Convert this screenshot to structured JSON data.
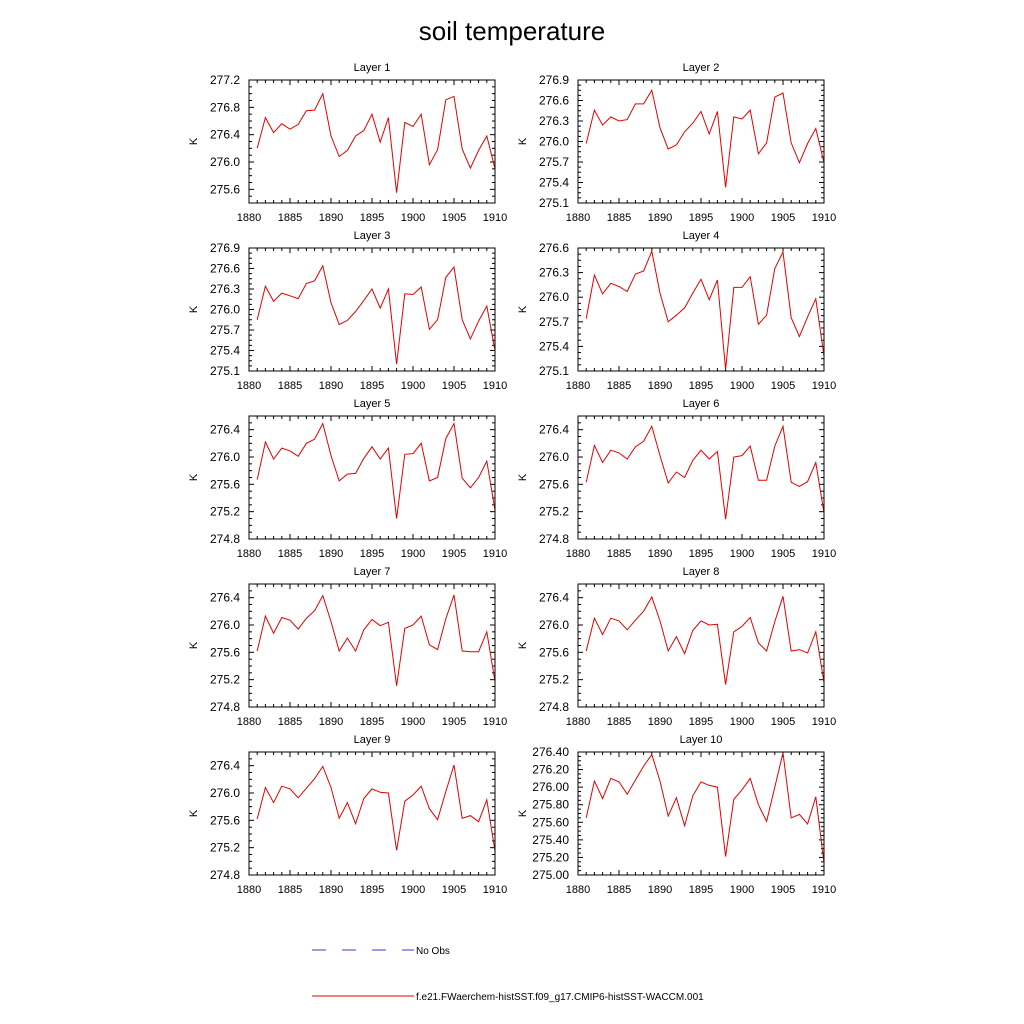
{
  "title": "soil temperature",
  "legend": {
    "no_obs_label": "No Obs",
    "no_obs_color": "#3a3ad0",
    "model_label": "f.e21.FWaerchem-histSST.f09_g17.CMIP6-histSST-WACCM.001",
    "model_color": "#e60000"
  },
  "chart_data": [
    {
      "type": "line",
      "title": "Layer 1",
      "xlabel": "",
      "ylabel": "K",
      "xlim": [
        1880,
        1910
      ],
      "ylim": [
        275.4,
        277.2
      ],
      "x_ticks": [
        1880,
        1885,
        1890,
        1895,
        1900,
        1905,
        1910
      ],
      "y_ticks": [
        "275.6",
        "276.0",
        "276.4",
        "276.8",
        "277.2"
      ],
      "x": [
        1881,
        1882,
        1883,
        1884,
        1885,
        1886,
        1887,
        1888,
        1889,
        1890,
        1891,
        1892,
        1893,
        1894,
        1895,
        1896,
        1897,
        1898,
        1899,
        1900,
        1901,
        1902,
        1903,
        1904,
        1905,
        1906,
        1907,
        1908,
        1909,
        1910
      ],
      "series": [
        {
          "values": [
            276.2,
            276.65,
            276.43,
            276.56,
            276.48,
            276.55,
            276.75,
            276.76,
            277.0,
            276.38,
            276.08,
            276.17,
            276.38,
            276.46,
            276.7,
            276.29,
            276.65,
            275.55,
            276.58,
            276.52,
            276.7,
            275.96,
            276.18,
            276.91,
            276.96,
            276.19,
            275.91,
            276.17,
            276.38,
            275.9
          ]
        }
      ]
    },
    {
      "type": "line",
      "title": "Layer 2",
      "xlabel": "",
      "ylabel": "K",
      "xlim": [
        1880,
        1910
      ],
      "ylim": [
        275.1,
        276.9
      ],
      "x_ticks": [
        1880,
        1885,
        1890,
        1895,
        1900,
        1905,
        1910
      ],
      "y_ticks": [
        "275.1",
        "275.4",
        "275.7",
        "276.0",
        "276.3",
        "276.6",
        "276.9"
      ],
      "x": [
        1881,
        1882,
        1883,
        1884,
        1885,
        1886,
        1887,
        1888,
        1889,
        1890,
        1891,
        1892,
        1893,
        1894,
        1895,
        1896,
        1897,
        1898,
        1899,
        1900,
        1901,
        1902,
        1903,
        1904,
        1905,
        1906,
        1907,
        1908,
        1909,
        1910
      ],
      "series": [
        {
          "values": [
            275.97,
            276.46,
            276.24,
            276.36,
            276.3,
            276.32,
            276.55,
            276.55,
            276.75,
            276.2,
            275.89,
            275.95,
            276.14,
            276.27,
            276.44,
            276.11,
            276.44,
            275.33,
            276.36,
            276.33,
            276.46,
            275.82,
            275.98,
            276.65,
            276.71,
            275.98,
            275.69,
            275.97,
            276.19,
            275.69
          ]
        }
      ]
    },
    {
      "type": "line",
      "title": "Layer 3",
      "xlabel": "",
      "ylabel": "K",
      "xlim": [
        1880,
        1910
      ],
      "ylim": [
        275.1,
        276.9
      ],
      "x_ticks": [
        1880,
        1885,
        1890,
        1895,
        1900,
        1905,
        1910
      ],
      "y_ticks": [
        "275.1",
        "275.4",
        "275.7",
        "276.0",
        "276.3",
        "276.6",
        "276.9"
      ],
      "x": [
        1881,
        1882,
        1883,
        1884,
        1885,
        1886,
        1887,
        1888,
        1889,
        1890,
        1891,
        1892,
        1893,
        1894,
        1895,
        1896,
        1897,
        1898,
        1899,
        1900,
        1901,
        1902,
        1903,
        1904,
        1905,
        1906,
        1907,
        1908,
        1909,
        1910
      ],
      "series": [
        {
          "values": [
            275.85,
            276.34,
            276.12,
            276.24,
            276.2,
            276.16,
            276.38,
            276.42,
            276.64,
            276.1,
            275.78,
            275.84,
            275.97,
            276.13,
            276.3,
            276.02,
            276.3,
            275.2,
            276.23,
            276.22,
            276.33,
            275.71,
            275.85,
            276.47,
            276.62,
            275.85,
            275.57,
            275.83,
            276.05,
            275.4
          ]
        }
      ]
    },
    {
      "type": "line",
      "title": "Layer 4",
      "xlabel": "",
      "ylabel": "K",
      "xlim": [
        1880,
        1910
      ],
      "ylim": [
        275.1,
        276.6
      ],
      "x_ticks": [
        1880,
        1885,
        1890,
        1895,
        1900,
        1905,
        1910
      ],
      "y_ticks": [
        "275.1",
        "275.4",
        "275.7",
        "276.0",
        "276.3",
        "276.6"
      ],
      "x": [
        1881,
        1882,
        1883,
        1884,
        1885,
        1886,
        1887,
        1888,
        1889,
        1890,
        1891,
        1892,
        1893,
        1894,
        1895,
        1896,
        1897,
        1898,
        1899,
        1900,
        1901,
        1902,
        1903,
        1904,
        1905,
        1906,
        1907,
        1908,
        1909,
        1910
      ],
      "series": [
        {
          "values": [
            275.74,
            276.27,
            276.04,
            276.17,
            276.13,
            276.07,
            276.28,
            276.32,
            276.56,
            276.05,
            275.7,
            275.78,
            275.87,
            276.05,
            276.22,
            275.97,
            276.21,
            275.12,
            276.12,
            276.12,
            276.25,
            275.67,
            275.78,
            276.35,
            276.55,
            275.75,
            275.52,
            275.76,
            275.98,
            275.28
          ]
        }
      ]
    },
    {
      "type": "line",
      "title": "Layer 5",
      "xlabel": "",
      "ylabel": "K",
      "xlim": [
        1880,
        1910
      ],
      "ylim": [
        274.8,
        276.6
      ],
      "x_ticks": [
        1880,
        1885,
        1890,
        1895,
        1900,
        1905,
        1910
      ],
      "y_ticks": [
        "274.8",
        "275.2",
        "275.6",
        "276.0",
        "276.4"
      ],
      "x": [
        1881,
        1882,
        1883,
        1884,
        1885,
        1886,
        1887,
        1888,
        1889,
        1890,
        1891,
        1892,
        1893,
        1894,
        1895,
        1896,
        1897,
        1898,
        1899,
        1900,
        1901,
        1902,
        1903,
        1904,
        1905,
        1906,
        1907,
        1908,
        1909,
        1910
      ],
      "series": [
        {
          "values": [
            275.67,
            276.22,
            275.97,
            276.13,
            276.09,
            276.01,
            276.2,
            276.26,
            276.49,
            276.02,
            275.65,
            275.75,
            275.76,
            275.98,
            276.15,
            275.97,
            276.13,
            275.1,
            276.04,
            276.05,
            276.2,
            275.65,
            275.7,
            276.27,
            276.49,
            275.69,
            275.55,
            275.7,
            275.94,
            275.22
          ]
        }
      ]
    },
    {
      "type": "line",
      "title": "Layer 6",
      "xlabel": "",
      "ylabel": "K",
      "xlim": [
        1880,
        1910
      ],
      "ylim": [
        274.8,
        276.6
      ],
      "x_ticks": [
        1880,
        1885,
        1890,
        1895,
        1900,
        1905,
        1910
      ],
      "y_ticks": [
        "274.8",
        "275.2",
        "275.6",
        "276.0",
        "276.4"
      ],
      "x": [
        1881,
        1882,
        1883,
        1884,
        1885,
        1886,
        1887,
        1888,
        1889,
        1890,
        1891,
        1892,
        1893,
        1894,
        1895,
        1896,
        1897,
        1898,
        1899,
        1900,
        1901,
        1902,
        1903,
        1904,
        1905,
        1906,
        1907,
        1908,
        1909,
        1910
      ],
      "series": [
        {
          "values": [
            275.63,
            276.17,
            275.92,
            276.1,
            276.06,
            275.97,
            276.15,
            276.23,
            276.45,
            276.02,
            275.62,
            275.78,
            275.7,
            275.95,
            276.1,
            275.97,
            276.08,
            275.09,
            276.0,
            276.02,
            276.16,
            275.66,
            275.66,
            276.16,
            276.45,
            275.63,
            275.57,
            275.64,
            275.92,
            275.18
          ]
        }
      ]
    },
    {
      "type": "line",
      "title": "Layer 7",
      "xlabel": "",
      "ylabel": "K",
      "xlim": [
        1880,
        1910
      ],
      "ylim": [
        274.8,
        276.6
      ],
      "x_ticks": [
        1880,
        1885,
        1890,
        1895,
        1900,
        1905,
        1910
      ],
      "y_ticks": [
        "274.8",
        "275.2",
        "275.6",
        "276.0",
        "276.4"
      ],
      "x": [
        1881,
        1882,
        1883,
        1884,
        1885,
        1886,
        1887,
        1888,
        1889,
        1890,
        1891,
        1892,
        1893,
        1894,
        1895,
        1896,
        1897,
        1898,
        1899,
        1900,
        1901,
        1902,
        1903,
        1904,
        1905,
        1906,
        1907,
        1908,
        1909,
        1910
      ],
      "series": [
        {
          "values": [
            275.62,
            276.13,
            275.88,
            276.11,
            276.07,
            275.94,
            276.1,
            276.21,
            276.43,
            276.05,
            275.62,
            275.81,
            275.62,
            275.93,
            276.08,
            275.99,
            276.04,
            275.11,
            275.95,
            276.0,
            276.13,
            275.71,
            275.64,
            276.09,
            276.44,
            275.62,
            275.61,
            275.61,
            275.9,
            275.17
          ]
        }
      ]
    },
    {
      "type": "line",
      "title": "Layer 8",
      "xlabel": "",
      "ylabel": "K",
      "xlim": [
        1880,
        1910
      ],
      "ylim": [
        274.8,
        276.6
      ],
      "x_ticks": [
        1880,
        1885,
        1890,
        1895,
        1900,
        1905,
        1910
      ],
      "y_ticks": [
        "274.8",
        "275.2",
        "275.6",
        "276.0",
        "276.4"
      ],
      "x": [
        1881,
        1882,
        1883,
        1884,
        1885,
        1886,
        1887,
        1888,
        1889,
        1890,
        1891,
        1892,
        1893,
        1894,
        1895,
        1896,
        1897,
        1898,
        1899,
        1900,
        1901,
        1902,
        1903,
        1904,
        1905,
        1906,
        1907,
        1908,
        1909,
        1910
      ],
      "series": [
        {
          "values": [
            275.62,
            276.1,
            275.86,
            276.1,
            276.06,
            275.93,
            276.07,
            276.2,
            276.41,
            276.06,
            275.62,
            275.83,
            275.58,
            275.92,
            276.06,
            276.0,
            276.01,
            275.13,
            275.9,
            275.98,
            276.11,
            275.74,
            275.62,
            276.05,
            276.42,
            275.62,
            275.64,
            275.59,
            275.9,
            275.16
          ]
        }
      ]
    },
    {
      "type": "line",
      "title": "Layer 9",
      "xlabel": "",
      "ylabel": "K",
      "xlim": [
        1880,
        1910
      ],
      "ylim": [
        274.8,
        276.6
      ],
      "x_ticks": [
        1880,
        1885,
        1890,
        1895,
        1900,
        1905,
        1910
      ],
      "y_ticks": [
        "274.8",
        "275.2",
        "275.6",
        "276.0",
        "276.4"
      ],
      "x": [
        1881,
        1882,
        1883,
        1884,
        1885,
        1886,
        1887,
        1888,
        1889,
        1890,
        1891,
        1892,
        1893,
        1894,
        1895,
        1896,
        1897,
        1898,
        1899,
        1900,
        1901,
        1902,
        1903,
        1904,
        1905,
        1906,
        1907,
        1908,
        1909,
        1910
      ],
      "series": [
        {
          "values": [
            275.62,
            276.08,
            275.86,
            276.1,
            276.06,
            275.93,
            276.07,
            276.21,
            276.39,
            276.08,
            275.63,
            275.86,
            275.55,
            275.92,
            276.06,
            276.01,
            276.0,
            275.16,
            275.88,
            275.97,
            276.1,
            275.77,
            275.61,
            276.02,
            276.41,
            275.63,
            275.67,
            275.58,
            275.9,
            275.15
          ]
        }
      ]
    },
    {
      "type": "line",
      "title": "Layer 10",
      "xlabel": "",
      "ylabel": "K",
      "xlim": [
        1880,
        1910
      ],
      "ylim": [
        275.0,
        276.4
      ],
      "x_ticks": [
        1880,
        1885,
        1890,
        1895,
        1900,
        1905,
        1910
      ],
      "y_ticks": [
        "275.00",
        "275.20",
        "275.40",
        "275.60",
        "275.80",
        "276.00",
        "276.20",
        "276.40"
      ],
      "x": [
        1881,
        1882,
        1883,
        1884,
        1885,
        1886,
        1887,
        1888,
        1889,
        1890,
        1891,
        1892,
        1893,
        1894,
        1895,
        1896,
        1897,
        1898,
        1899,
        1900,
        1901,
        1902,
        1903,
        1904,
        1905,
        1906,
        1907,
        1908,
        1909,
        1910
      ],
      "series": [
        {
          "values": [
            275.65,
            276.07,
            275.87,
            276.1,
            276.06,
            275.92,
            276.08,
            276.24,
            276.37,
            276.07,
            275.67,
            275.88,
            275.56,
            275.9,
            276.06,
            276.02,
            276.0,
            275.21,
            275.86,
            275.97,
            276.1,
            275.8,
            275.61,
            276.0,
            276.39,
            275.65,
            275.69,
            275.58,
            275.89,
            275.14
          ]
        }
      ]
    }
  ]
}
